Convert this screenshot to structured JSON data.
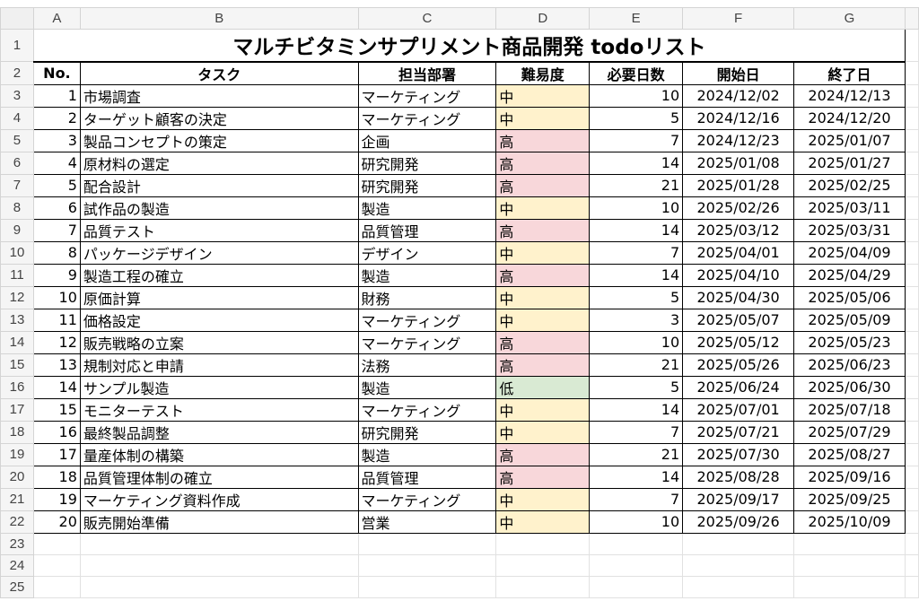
{
  "columns": [
    "A",
    "B",
    "C",
    "D",
    "E",
    "F",
    "G"
  ],
  "title": "マルチビタミンサプリメント商品開発 todoリスト",
  "headers": [
    "No.",
    "タスク",
    "担当部署",
    "難易度",
    "必要日数",
    "開始日",
    "終了日"
  ],
  "difficulty_colors": {
    "中": "#fff2cc",
    "高": "#f8d7da",
    "低": "#d9ead3"
  },
  "rows": [
    {
      "no": "1",
      "task": "市場調査",
      "dept": "マーケティング",
      "diff": "中",
      "days": "10",
      "start": "2024/12/02",
      "end": "2024/12/13"
    },
    {
      "no": "2",
      "task": "ターゲット顧客の決定",
      "dept": "マーケティング",
      "diff": "中",
      "days": "5",
      "start": "2024/12/16",
      "end": "2024/12/20"
    },
    {
      "no": "3",
      "task": "製品コンセプトの策定",
      "dept": "企画",
      "diff": "高",
      "days": "7",
      "start": "2024/12/23",
      "end": "2025/01/07"
    },
    {
      "no": "4",
      "task": "原材料の選定",
      "dept": "研究開発",
      "diff": "高",
      "days": "14",
      "start": "2025/01/08",
      "end": "2025/01/27"
    },
    {
      "no": "5",
      "task": "配合設計",
      "dept": "研究開発",
      "diff": "高",
      "days": "21",
      "start": "2025/01/28",
      "end": "2025/02/25"
    },
    {
      "no": "6",
      "task": "試作品の製造",
      "dept": "製造",
      "diff": "中",
      "days": "10",
      "start": "2025/02/26",
      "end": "2025/03/11"
    },
    {
      "no": "7",
      "task": "品質テスト",
      "dept": "品質管理",
      "diff": "高",
      "days": "14",
      "start": "2025/03/12",
      "end": "2025/03/31"
    },
    {
      "no": "8",
      "task": "パッケージデザイン",
      "dept": "デザイン",
      "diff": "中",
      "days": "7",
      "start": "2025/04/01",
      "end": "2025/04/09"
    },
    {
      "no": "9",
      "task": "製造工程の確立",
      "dept": "製造",
      "diff": "高",
      "days": "14",
      "start": "2025/04/10",
      "end": "2025/04/29"
    },
    {
      "no": "10",
      "task": "原価計算",
      "dept": "財務",
      "diff": "中",
      "days": "5",
      "start": "2025/04/30",
      "end": "2025/05/06"
    },
    {
      "no": "11",
      "task": "価格設定",
      "dept": "マーケティング",
      "diff": "中",
      "days": "3",
      "start": "2025/05/07",
      "end": "2025/05/09"
    },
    {
      "no": "12",
      "task": "販売戦略の立案",
      "dept": "マーケティング",
      "diff": "高",
      "days": "10",
      "start": "2025/05/12",
      "end": "2025/05/23"
    },
    {
      "no": "13",
      "task": "規制対応と申請",
      "dept": "法務",
      "diff": "高",
      "days": "21",
      "start": "2025/05/26",
      "end": "2025/06/23"
    },
    {
      "no": "14",
      "task": "サンプル製造",
      "dept": "製造",
      "diff": "低",
      "days": "5",
      "start": "2025/06/24",
      "end": "2025/06/30"
    },
    {
      "no": "15",
      "task": "モニターテスト",
      "dept": "マーケティング",
      "diff": "中",
      "days": "14",
      "start": "2025/07/01",
      "end": "2025/07/18"
    },
    {
      "no": "16",
      "task": "最終製品調整",
      "dept": "研究開発",
      "diff": "中",
      "days": "7",
      "start": "2025/07/21",
      "end": "2025/07/29"
    },
    {
      "no": "17",
      "task": "量産体制の構築",
      "dept": "製造",
      "diff": "高",
      "days": "21",
      "start": "2025/07/30",
      "end": "2025/08/27"
    },
    {
      "no": "18",
      "task": "品質管理体制の確立",
      "dept": "品質管理",
      "diff": "高",
      "days": "14",
      "start": "2025/08/28",
      "end": "2025/09/16"
    },
    {
      "no": "19",
      "task": "マーケティング資料作成",
      "dept": "マーケティング",
      "diff": "中",
      "days": "7",
      "start": "2025/09/17",
      "end": "2025/09/25"
    },
    {
      "no": "20",
      "task": "販売開始準備",
      "dept": "営業",
      "diff": "中",
      "days": "10",
      "start": "2025/09/26",
      "end": "2025/10/09"
    }
  ],
  "row_numbers": [
    "1",
    "2",
    "3",
    "4",
    "5",
    "6",
    "7",
    "8",
    "9",
    "10",
    "11",
    "12",
    "13",
    "14",
    "15",
    "16",
    "17",
    "18",
    "19",
    "20",
    "21",
    "22",
    "23",
    "24",
    "25"
  ]
}
